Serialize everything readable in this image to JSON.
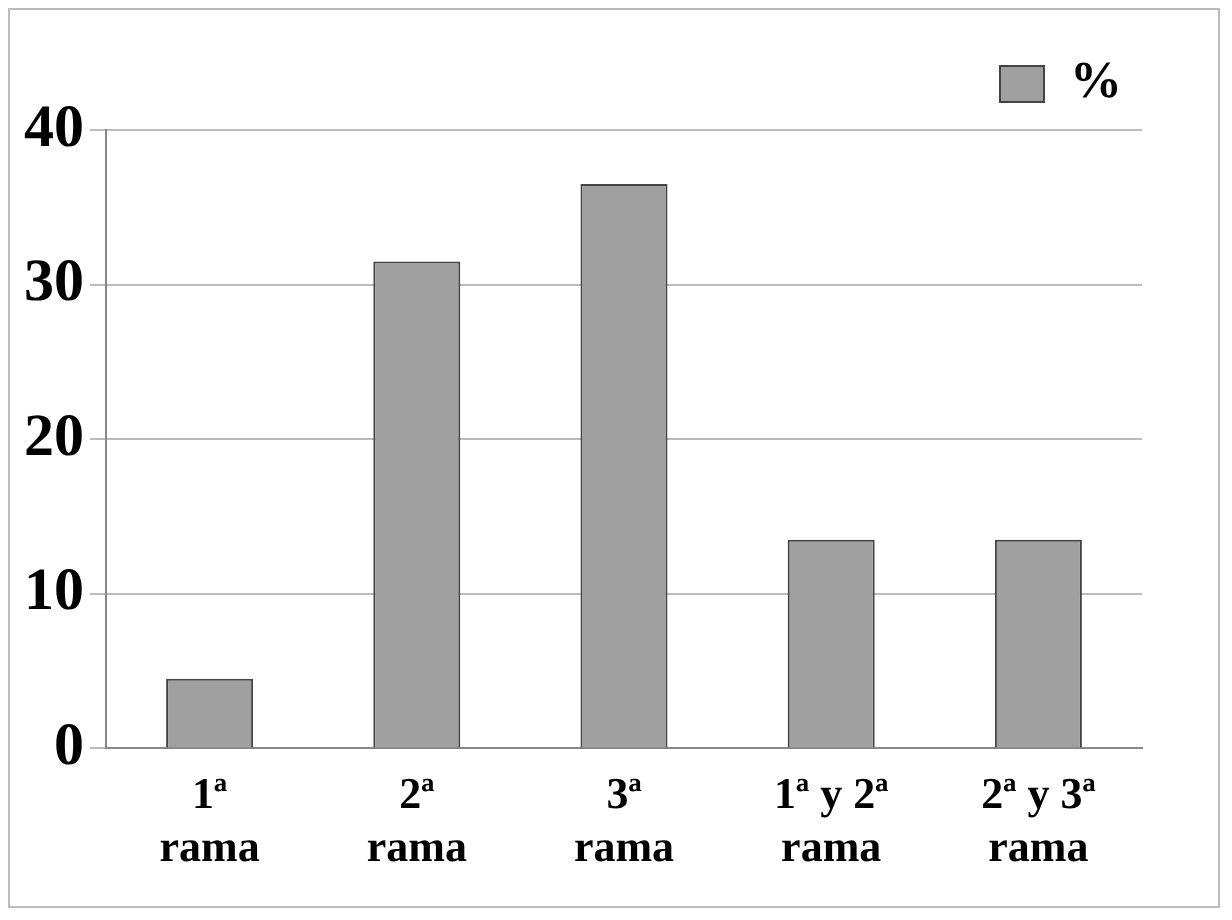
{
  "chart_data": {
    "type": "bar",
    "categories": [
      "1ª\nrama",
      "2ª\nrama",
      "3ª\nrama",
      "1ª y 2ª\nrama",
      "2ª y 3ª\nrama"
    ],
    "series": [
      {
        "name": "%",
        "color": "#a0a0a0",
        "values": [
          4.5,
          31.5,
          36.5,
          13.5,
          13.5
        ]
      }
    ],
    "ylim": [
      0,
      40
    ],
    "yticks": [
      0,
      10,
      20,
      30,
      40
    ],
    "grid": "y",
    "legend": "top right"
  }
}
